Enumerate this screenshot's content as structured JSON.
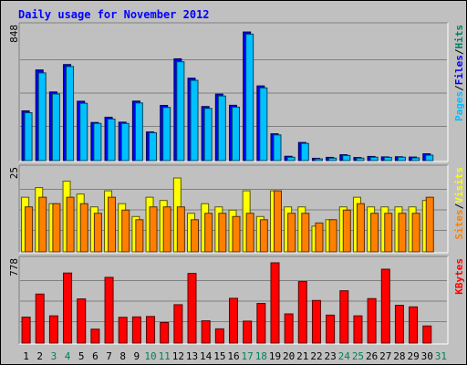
{
  "chart_data": {
    "type": "bar",
    "title": "Daily usage for November 2012",
    "x": [
      "1",
      "2",
      "3",
      "4",
      "5",
      "6",
      "7",
      "8",
      "9",
      "10",
      "11",
      "12",
      "13",
      "14",
      "15",
      "16",
      "17",
      "18",
      "19",
      "20",
      "21",
      "22",
      "23",
      "24",
      "25",
      "26",
      "27",
      "28",
      "29",
      "30",
      "31"
    ],
    "weekend_days": [
      "3",
      "4",
      "10",
      "11",
      "17",
      "18",
      "24",
      "25",
      "31"
    ],
    "panels": [
      {
        "id": "hits",
        "max_label": "848",
        "ymax": 848,
        "grid": true,
        "legend": [
          "Pages",
          "/",
          "Files",
          "/",
          "Hits"
        ],
        "series": [
          {
            "name": "Pages",
            "values": [
              0,
              0,
              0,
              0,
              0,
              0,
              0,
              0,
              0,
              0,
              0,
              0,
              0,
              0,
              0,
              0,
              0,
              0,
              0,
              0,
              0,
              0,
              0,
              0,
              0,
              0,
              0,
              0,
              0,
              0,
              0
            ]
          },
          {
            "name": "Files",
            "values": [
              321,
              585,
              443,
              620,
              383,
              246,
              280,
              248,
              384,
              185,
              356,
              657,
              532,
              349,
              429,
              357,
              830,
              482,
              173,
              28,
              117,
              15,
              21,
              38,
              20,
              27,
              24,
              25,
              23,
              44,
              0
            ]
          },
          {
            "name": "Hits",
            "values": [
              309,
              566,
              430,
              607,
              370,
              240,
              268,
              240,
              372,
              180,
              343,
              638,
              518,
              337,
              417,
              345,
              816,
              469,
              166,
              22,
              111,
              11,
              16,
              33,
              16,
              22,
              21,
              22,
              18,
              35,
              0
            ]
          }
        ]
      },
      {
        "id": "visits",
        "max_label": "25",
        "ymax": 25,
        "grid": true,
        "legend": [
          "Sites",
          "/",
          "Visits"
        ],
        "series": [
          {
            "name": "Visits",
            "values": [
              17,
              20,
              15,
              22,
              18,
              14,
              19,
              15,
              11,
              17,
              16,
              23,
              12,
              15,
              14,
              13,
              19,
              11,
              19,
              14,
              14,
              8,
              10,
              14,
              17,
              14,
              14,
              14,
              14,
              16,
              0
            ]
          },
          {
            "name": "Sites",
            "values": [
              14,
              17,
              15,
              17,
              15,
              12,
              17,
              13,
              10,
              14,
              14,
              14,
              10,
              12,
              12,
              11,
              12,
              10,
              19,
              12,
              12,
              9,
              10,
              13,
              15,
              12,
              12,
              12,
              12,
              17,
              0
            ]
          }
        ]
      },
      {
        "id": "kbytes",
        "max_label": "778",
        "ymax": 778,
        "grid": true,
        "legend": [
          "KBytes"
        ],
        "series": [
          {
            "name": "KBytes",
            "values": [
              252,
              475,
              264,
              679,
              428,
              135,
              637,
              250,
              254,
              258,
              199,
              372,
              675,
              216,
              138,
              434,
              213,
              384,
              778,
              283,
              596,
              413,
              271,
              507,
              264,
              431,
              716,
              366,
              351,
              166,
              0
            ]
          }
        ]
      }
    ]
  },
  "colors": {
    "background": "#c0c0c0",
    "frame": "#000000",
    "title": "#0000ff",
    "grid": "#808080",
    "axis_label": "#000000",
    "weekend_label": "#00805c",
    "pages": "#00805c",
    "files": "#0000ff",
    "hits": "#00c0ff",
    "visits": "#ffff00",
    "sites": "#ff8000",
    "kbytes": "#ff0000"
  }
}
